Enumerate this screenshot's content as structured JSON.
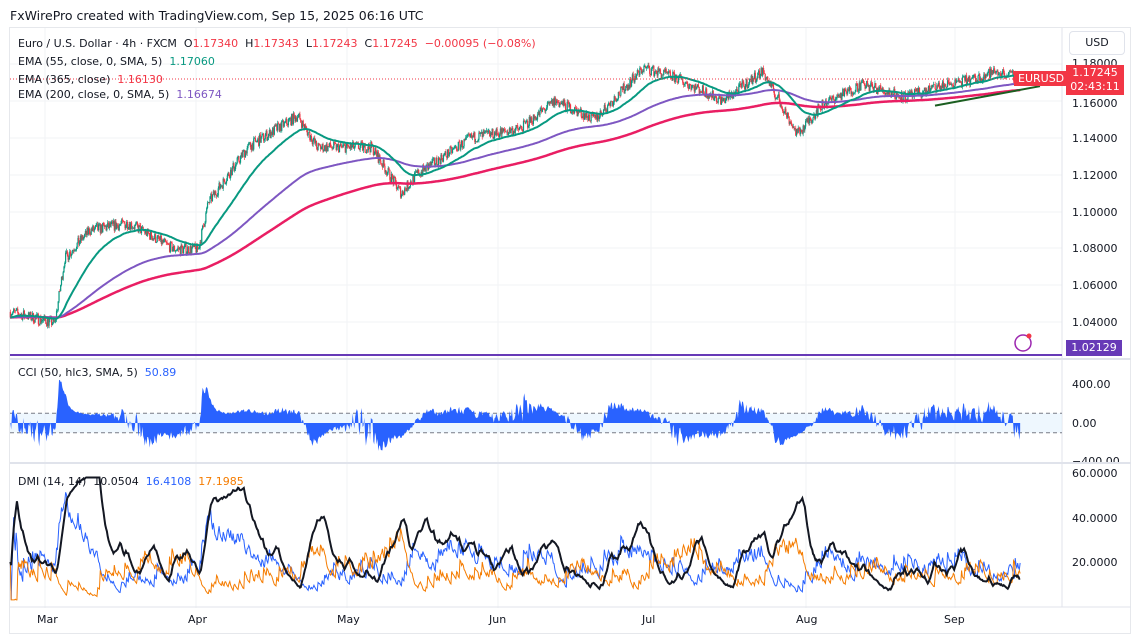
{
  "header": {
    "credit": "FxWirePro created with TradingView.com, Sep 15, 2025 06:16 UTC"
  },
  "symbol": {
    "name": "Euro / U.S. Dollar · 4h · FXCM",
    "o_label": "O",
    "o": "1.17340",
    "h_label": "H",
    "h": "1.17343",
    "l_label": "L",
    "l": "1.17243",
    "c_label": "C",
    "c": "1.17245",
    "change": "−0.00095 (−0.08%)",
    "ticker": "EURUSD",
    "countdown": "02:43:11",
    "currency": "USD"
  },
  "indicators": {
    "ema55": {
      "label": "EMA (55, close, 0, SMA, 5)",
      "value": "1.17060",
      "color": "#089981"
    },
    "ema365": {
      "label": "EMA (365, close)",
      "value": "1.16130",
      "color": "#f23645"
    },
    "ema200": {
      "label": "EMA (200, close, 0, SMA, 5)",
      "value": "1.16674",
      "color": "#7e57c2"
    },
    "cci": {
      "label": "CCI (50, hlc3, SMA, 5)",
      "value": "50.89",
      "color": "#2962ff"
    },
    "dmi": {
      "label": "DMI (14, 14)",
      "adx": "10.0504",
      "plus_di": "16.4108",
      "minus_di": "17.1985",
      "colors": [
        "#131722",
        "#2962ff",
        "#f57c00"
      ]
    }
  },
  "price_axis": [
    "1.18000",
    "1.16000",
    "1.14000",
    "1.12000",
    "1.10000",
    "1.08000",
    "1.06000",
    "1.04000"
  ],
  "low_line": "1.02129",
  "cci_axis": [
    "400.00",
    "0.00",
    "−400.00"
  ],
  "dmi_axis": [
    "60.0000",
    "40.0000",
    "20.0000"
  ],
  "months": [
    "Mar",
    "Apr",
    "May",
    "Jun",
    "Jul",
    "Aug",
    "Sep"
  ],
  "chart_data": {
    "type": "candlestick",
    "x_unit": "date 2025",
    "price_path": [
      [
        "02-22",
        1.046
      ],
      [
        "03-03",
        1.04
      ],
      [
        "03-05",
        1.075
      ],
      [
        "03-10",
        1.09
      ],
      [
        "03-18",
        1.094
      ],
      [
        "03-27",
        1.08
      ],
      [
        "04-01",
        1.08
      ],
      [
        "04-03",
        1.105
      ],
      [
        "04-11",
        1.135
      ],
      [
        "04-21",
        1.152
      ],
      [
        "04-25",
        1.135
      ],
      [
        "05-06",
        1.135
      ],
      [
        "05-12",
        1.11
      ],
      [
        "05-15",
        1.12
      ],
      [
        "05-26",
        1.14
      ],
      [
        "06-05",
        1.145
      ],
      [
        "06-12",
        1.16
      ],
      [
        "06-20",
        1.15
      ],
      [
        "06-30",
        1.178
      ],
      [
        "07-07",
        1.172
      ],
      [
        "07-16",
        1.16
      ],
      [
        "07-24",
        1.176
      ],
      [
        "07-31",
        1.142
      ],
      [
        "08-05",
        1.158
      ],
      [
        "08-13",
        1.169
      ],
      [
        "08-22",
        1.162
      ],
      [
        "08-29",
        1.168
      ],
      [
        "09-05",
        1.172
      ],
      [
        "09-09",
        1.176
      ],
      [
        "09-14",
        1.1725
      ]
    ],
    "colors": {
      "up": "#089981",
      "down": "#f23645"
    }
  }
}
